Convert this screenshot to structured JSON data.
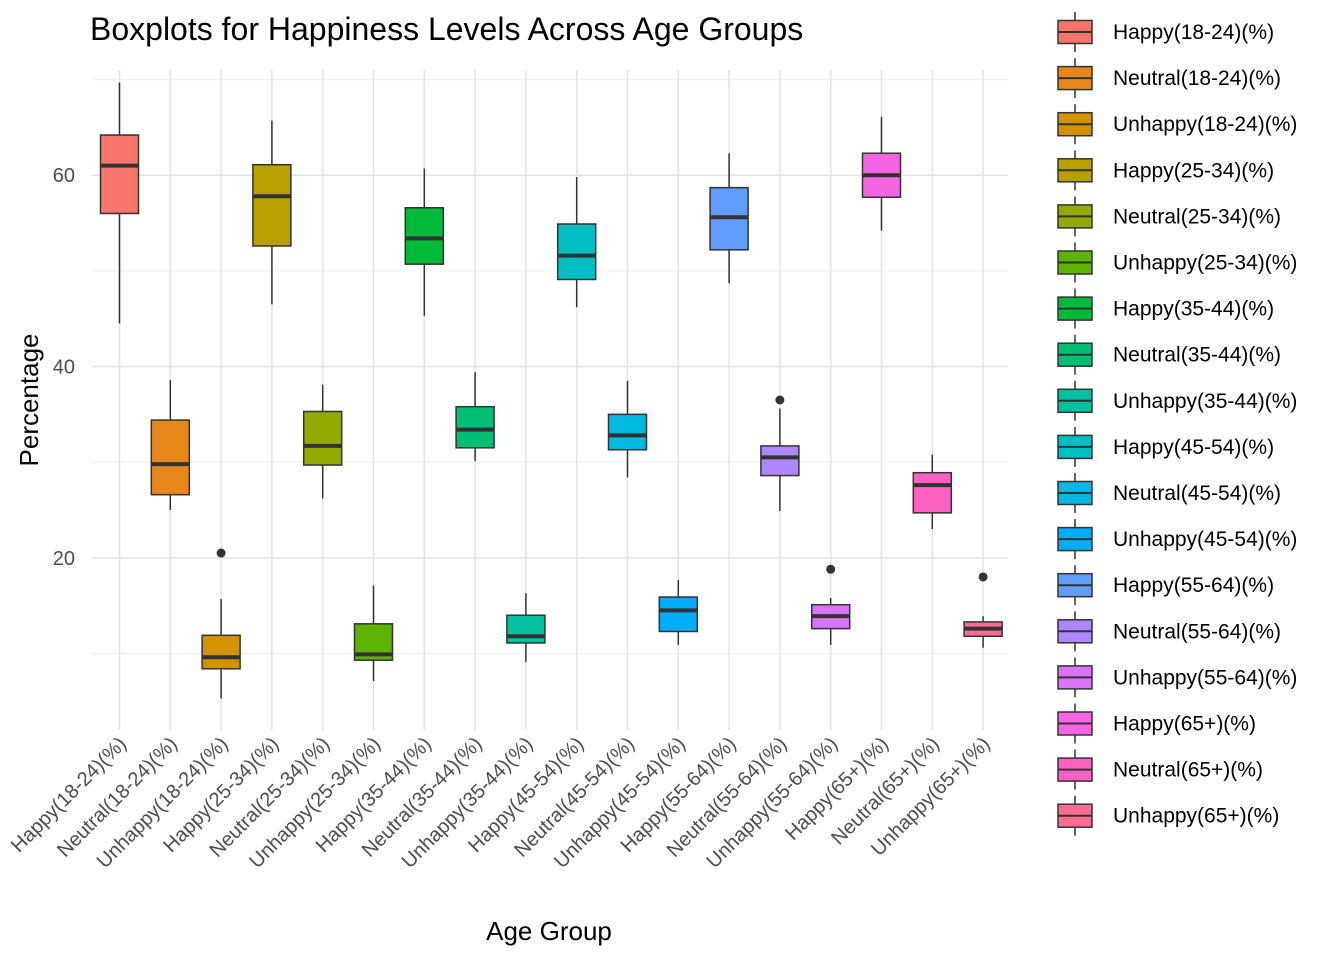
{
  "chart_data": {
    "type": "box",
    "title": "Boxplots for Happiness Levels Across Age Groups",
    "xlabel": "Age Group",
    "ylabel": "Percentage",
    "ylim": [
      2,
      71
    ],
    "yticks": [
      20,
      40,
      60
    ],
    "grid": true,
    "legend_position": "right",
    "categories": [
      "Happy(18-24)(%)",
      "Neutral(18-24)(%)",
      "Unhappy(18-24)(%)",
      "Happy(25-34)(%)",
      "Neutral(25-34)(%)",
      "Unhappy(25-34)(%)",
      "Happy(35-44)(%)",
      "Neutral(35-44)(%)",
      "Unhappy(35-44)(%)",
      "Happy(45-54)(%)",
      "Neutral(45-54)(%)",
      "Unhappy(45-54)(%)",
      "Happy(55-64)(%)",
      "Neutral(55-64)(%)",
      "Unhappy(55-64)(%)",
      "Happy(65+)(%)",
      "Neutral(65+)(%)",
      "Unhappy(65+)(%)"
    ],
    "colors": [
      "#F8766D",
      "#E7861B",
      "#D39200",
      "#B8A000",
      "#93AA00",
      "#5EB300",
      "#00BA38",
      "#00BF74",
      "#00C19F",
      "#00BFC4",
      "#00B9E3",
      "#00ADFA",
      "#619CFF",
      "#AE87FF",
      "#DB72FB",
      "#F564E3",
      "#FF61C3",
      "#FF6C91"
    ],
    "boxes": [
      {
        "min": 44.5,
        "q1": 56.0,
        "median": 61.0,
        "q3": 64.2,
        "max": 69.7,
        "outliers": []
      },
      {
        "min": 25.0,
        "q1": 26.6,
        "median": 29.8,
        "q3": 34.4,
        "max": 38.6,
        "outliers": []
      },
      {
        "min": 5.3,
        "q1": 8.4,
        "median": 9.6,
        "q3": 11.9,
        "max": 15.7,
        "outliers": [
          20.5
        ]
      },
      {
        "min": 46.5,
        "q1": 52.6,
        "median": 57.8,
        "q3": 61.1,
        "max": 65.7,
        "outliers": []
      },
      {
        "min": 26.2,
        "q1": 29.7,
        "median": 31.7,
        "q3": 35.3,
        "max": 38.1,
        "outliers": []
      },
      {
        "min": 7.1,
        "q1": 9.3,
        "median": 9.9,
        "q3": 13.1,
        "max": 17.1,
        "outliers": []
      },
      {
        "min": 45.3,
        "q1": 50.7,
        "median": 53.4,
        "q3": 56.6,
        "max": 60.7,
        "outliers": []
      },
      {
        "min": 30.1,
        "q1": 31.5,
        "median": 33.4,
        "q3": 35.8,
        "max": 39.4,
        "outliers": []
      },
      {
        "min": 9.1,
        "q1": 11.1,
        "median": 11.8,
        "q3": 14.0,
        "max": 16.3,
        "outliers": []
      },
      {
        "min": 46.2,
        "q1": 49.1,
        "median": 51.6,
        "q3": 54.9,
        "max": 59.8,
        "outliers": []
      },
      {
        "min": 28.4,
        "q1": 31.3,
        "median": 32.8,
        "q3": 35.0,
        "max": 38.5,
        "outliers": []
      },
      {
        "min": 10.9,
        "q1": 12.3,
        "median": 14.5,
        "q3": 15.9,
        "max": 17.7,
        "outliers": []
      },
      {
        "min": 48.7,
        "q1": 52.2,
        "median": 55.6,
        "q3": 58.7,
        "max": 62.3,
        "outliers": []
      },
      {
        "min": 24.9,
        "q1": 28.6,
        "median": 30.5,
        "q3": 31.7,
        "max": 35.6,
        "outliers": [
          36.5
        ]
      },
      {
        "min": 10.9,
        "q1": 12.6,
        "median": 13.9,
        "q3": 15.1,
        "max": 15.8,
        "outliers": [
          18.8
        ]
      },
      {
        "min": 54.2,
        "q1": 57.7,
        "median": 60.0,
        "q3": 62.3,
        "max": 66.1,
        "outliers": []
      },
      {
        "min": 23.0,
        "q1": 24.7,
        "median": 27.6,
        "q3": 28.9,
        "max": 30.8,
        "outliers": []
      },
      {
        "min": 10.6,
        "q1": 11.8,
        "median": 12.6,
        "q3": 13.3,
        "max": 13.9,
        "outliers": [
          18.0
        ]
      }
    ]
  }
}
